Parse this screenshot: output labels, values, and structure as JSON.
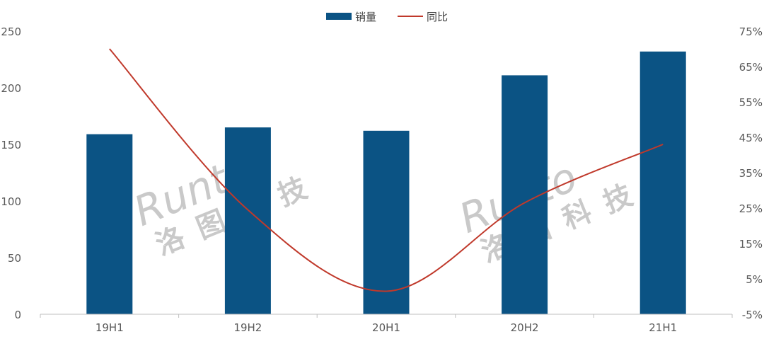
{
  "chart_data": {
    "type": "bar+line",
    "categories": [
      "19H1",
      "19H2",
      "20H1",
      "20H2",
      "21H1"
    ],
    "series": [
      {
        "name": "销量",
        "type": "bar",
        "axis": "left",
        "color": "#0b5384",
        "values": [
          159,
          165,
          162,
          211,
          232
        ]
      },
      {
        "name": "同比",
        "type": "line",
        "axis": "right",
        "color": "#c0392b",
        "values": [
          70,
          24.5,
          1.5,
          26.5,
          43
        ]
      }
    ],
    "y_left": {
      "range": [
        0,
        250
      ],
      "ticks": [
        "0",
        "50",
        "100",
        "150",
        "200",
        "250"
      ]
    },
    "y_right": {
      "range": [
        -5,
        75
      ],
      "ticks": [
        "-5%",
        "5%",
        "15%",
        "25%",
        "35%",
        "45%",
        "55%",
        "65%",
        "75%"
      ]
    },
    "legend_position": "top",
    "grid": false,
    "watermark": {
      "latin": "Runto",
      "chinese": "洛图科技"
    }
  }
}
